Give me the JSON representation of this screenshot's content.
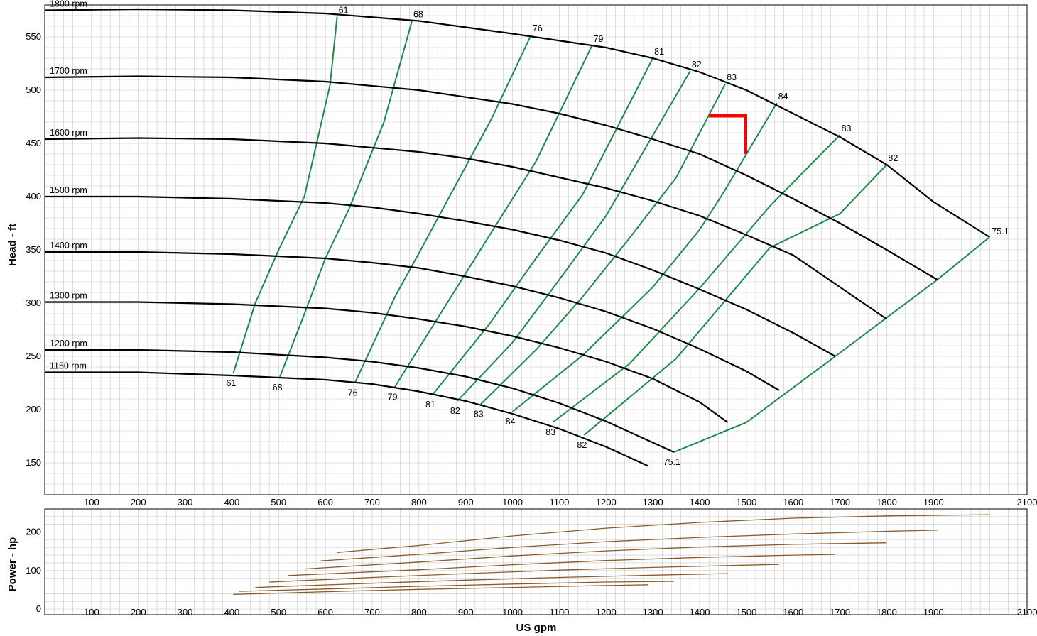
{
  "chart_data": [
    {
      "type": "line",
      "xlabel": "",
      "ylabel": "Head - ft",
      "xlim": [
        0,
        2100
      ],
      "ylim": [
        120,
        580
      ],
      "x_ticks": [
        100,
        200,
        300,
        400,
        500,
        600,
        700,
        800,
        900,
        1000,
        1100,
        1200,
        1300,
        1400,
        1500,
        1600,
        1700,
        1800,
        1900,
        2100
      ],
      "y_ticks": [
        150,
        200,
        250,
        300,
        350,
        400,
        450,
        500,
        550
      ],
      "grid": true,
      "colors": {
        "speed_curve": "#000000",
        "efficiency_curve": "#1a8a4a",
        "marker": "#ff0000",
        "grid": "#c8c8c8"
      },
      "series": [
        {
          "name": "1800 rpm",
          "x": [
            0,
            200,
            400,
            600,
            800,
            1000,
            1200,
            1300,
            1400,
            1500,
            1600,
            1700,
            1800,
            1900,
            2020
          ],
          "y": [
            575,
            576,
            575,
            572,
            565,
            553,
            540,
            530,
            517,
            500,
            478,
            456,
            430,
            395,
            362
          ]
        },
        {
          "name": "1700 rpm",
          "x": [
            0,
            200,
            400,
            600,
            800,
            1000,
            1100,
            1200,
            1300,
            1400,
            1500,
            1600,
            1700,
            1800,
            1908
          ],
          "y": [
            512,
            513,
            512,
            508,
            500,
            487,
            478,
            467,
            454,
            440,
            420,
            398,
            375,
            350,
            322
          ]
        },
        {
          "name": "1600 rpm",
          "x": [
            0,
            200,
            400,
            600,
            800,
            900,
            1000,
            1100,
            1200,
            1300,
            1400,
            1500,
            1600,
            1700,
            1800
          ],
          "y": [
            454,
            455,
            454,
            450,
            442,
            436,
            428,
            418,
            408,
            396,
            382,
            364,
            345,
            315,
            285
          ]
        },
        {
          "name": "1500 rpm",
          "x": [
            0,
            200,
            400,
            600,
            700,
            800,
            900,
            1000,
            1100,
            1200,
            1300,
            1400,
            1500,
            1600,
            1690
          ],
          "y": [
            400,
            400,
            398,
            394,
            390,
            384,
            377,
            369,
            359,
            347,
            331,
            313,
            294,
            272,
            250
          ]
        },
        {
          "name": "1400 rpm",
          "x": [
            0,
            200,
            400,
            600,
            700,
            800,
            900,
            1000,
            1100,
            1200,
            1300,
            1400,
            1500,
            1570
          ],
          "y": [
            348,
            348,
            346,
            342,
            338,
            333,
            325,
            316,
            305,
            292,
            276,
            257,
            236,
            218
          ]
        },
        {
          "name": "1300 rpm",
          "x": [
            0,
            200,
            400,
            600,
            700,
            800,
            900,
            1000,
            1100,
            1200,
            1300,
            1400,
            1460
          ],
          "y": [
            301,
            301,
            299,
            295,
            291,
            285,
            278,
            269,
            258,
            245,
            229,
            207,
            188
          ]
        },
        {
          "name": "1200 rpm",
          "x": [
            0,
            200,
            400,
            600,
            700,
            800,
            900,
            1000,
            1100,
            1200,
            1300,
            1345
          ],
          "y": [
            256,
            256,
            254,
            249,
            245,
            239,
            231,
            220,
            206,
            189,
            169,
            160
          ]
        },
        {
          "name": "1150 rpm",
          "x": [
            0,
            200,
            400,
            600,
            700,
            800,
            900,
            1000,
            1100,
            1200,
            1290
          ],
          "y": [
            235,
            235,
            232,
            228,
            224,
            217,
            208,
            196,
            182,
            165,
            147
          ]
        }
      ],
      "efficiency_curves": [
        {
          "label": "61",
          "x": [
            403,
            450,
            500,
            555,
            610,
            625
          ],
          "y": [
            234,
            300,
            350,
            400,
            505,
            569
          ]
        },
        {
          "label": "68",
          "x": [
            502,
            550,
            600,
            650,
            725,
            785
          ],
          "y": [
            230,
            284,
            342,
            388,
            470,
            565
          ]
        },
        {
          "label": "76",
          "x": [
            663,
            750,
            800,
            870,
            955,
            1040
          ],
          "y": [
            225,
            307,
            347,
            404,
            473,
            552
          ]
        },
        {
          "label": "79",
          "x": [
            748,
            850,
            950,
            1050,
            1170
          ],
          "y": [
            221,
            293,
            363,
            433,
            542
          ]
        },
        {
          "label": "81",
          "x": [
            829,
            950,
            1050,
            1150,
            1300
          ],
          "y": [
            214,
            280,
            342,
            402,
            530
          ]
        },
        {
          "label": "82",
          "x": [
            882,
            1000,
            1100,
            1200,
            1380
          ],
          "y": [
            208,
            263,
            322,
            382,
            518
          ]
        },
        {
          "label": "83",
          "x": [
            932,
            1050,
            1150,
            1250,
            1350,
            1455
          ],
          "y": [
            205,
            256,
            306,
            361,
            418,
            506
          ]
        },
        {
          "label": "84",
          "x": [
            1000,
            1150,
            1300,
            1400,
            1450,
            1565
          ],
          "y": [
            198,
            251,
            315,
            369,
            403,
            488
          ]
        },
        {
          "label": "83",
          "x": [
            1086,
            1250,
            1400,
            1550,
            1700
          ],
          "y": [
            188,
            243,
            314,
            391,
            458
          ]
        },
        {
          "label": "82",
          "x": [
            1153,
            1350,
            1550,
            1700,
            1800
          ],
          "y": [
            176,
            248,
            352,
            384,
            430
          ]
        },
        {
          "label": "75.1",
          "x": [
            1345,
            1500,
            1690,
            1908,
            2020
          ],
          "y": [
            160,
            188,
            250,
            322,
            362
          ]
        }
      ],
      "efficiency_labels_bottom": [
        "61",
        "68",
        "76",
        "79",
        "81",
        "82",
        "83",
        "84",
        "83",
        "82",
        "75.1"
      ],
      "efficiency_labels_top": [
        "61",
        "68",
        "76",
        "79",
        "81",
        "82",
        "83",
        "84",
        "83",
        "82",
        "75.1"
      ],
      "marker": {
        "type": "red-corner",
        "points": [
          [
            1420,
            476
          ],
          [
            1498,
            476
          ],
          [
            1498,
            440
          ]
        ]
      }
    },
    {
      "type": "line",
      "xlabel": "US gpm",
      "ylabel": "Power - hp",
      "xlim": [
        0,
        2100
      ],
      "ylim": [
        0,
        260
      ],
      "x_ticks": [
        100,
        200,
        300,
        400,
        500,
        600,
        700,
        800,
        900,
        1000,
        1100,
        1200,
        1300,
        1400,
        1500,
        1600,
        1700,
        1800,
        1900,
        2100
      ],
      "y_ticks": [
        0,
        100,
        200
      ],
      "grid": true,
      "colors": {
        "power_curve": "#8b5a2b"
      },
      "series": [
        {
          "x": [
            625,
            800,
            1000,
            1200,
            1400,
            1600,
            1800,
            2020
          ],
          "y": [
            147,
            165,
            190,
            210,
            225,
            236,
            242,
            245
          ]
        },
        {
          "x": [
            590,
            800,
            1000,
            1200,
            1400,
            1600,
            1800,
            1908
          ],
          "y": [
            125,
            142,
            160,
            175,
            186,
            195,
            202,
            205
          ]
        },
        {
          "x": [
            555,
            800,
            1000,
            1200,
            1400,
            1600,
            1800
          ],
          "y": [
            104,
            122,
            138,
            151,
            161,
            168,
            172
          ]
        },
        {
          "x": [
            520,
            800,
            1000,
            1200,
            1400,
            1600,
            1690
          ],
          "y": [
            87,
            102,
            115,
            126,
            134,
            140,
            142
          ]
        },
        {
          "x": [
            480,
            700,
            900,
            1100,
            1300,
            1500,
            1570
          ],
          "y": [
            70,
            82,
            92,
            101,
            108,
            114,
            116
          ]
        },
        {
          "x": [
            450,
            700,
            900,
            1100,
            1300,
            1460
          ],
          "y": [
            56,
            67,
            75,
            82,
            88,
            92
          ]
        },
        {
          "x": [
            415,
            600,
            800,
            1000,
            1200,
            1345
          ],
          "y": [
            46,
            52,
            59,
            65,
            70,
            72
          ]
        },
        {
          "x": [
            403,
            600,
            800,
            1000,
            1200,
            1290
          ],
          "y": [
            38,
            45,
            51,
            56,
            61,
            63
          ]
        }
      ]
    }
  ]
}
